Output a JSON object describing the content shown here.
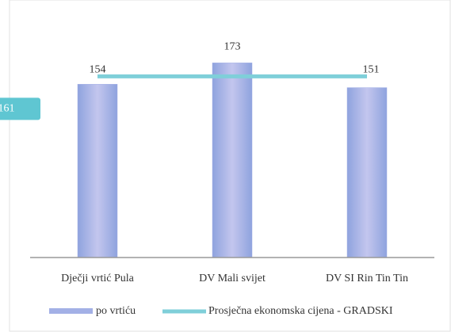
{
  "chart_data": {
    "type": "bar",
    "categories": [
      "Dječji vrtić Pula",
      "DV Mali svijet",
      "DV SI Rin Tin Tin"
    ],
    "series": [
      {
        "name": "po vrtiću",
        "color": "#a3b0e6",
        "values": [
          154,
          173,
          151
        ]
      },
      {
        "name": "Prosječna ekonomska cijena - GRADSKI",
        "color": "#7fcfd9",
        "type": "line",
        "values": [
          161,
          161,
          161
        ]
      }
    ],
    "ylim": [
      0,
      200
    ]
  }
}
